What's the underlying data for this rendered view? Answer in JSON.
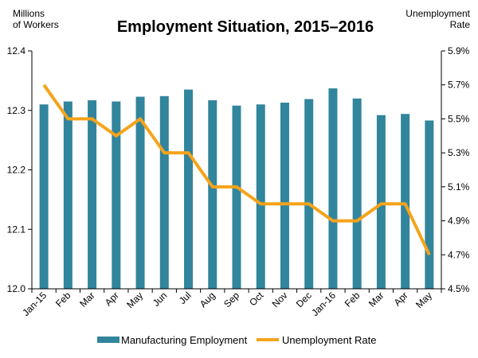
{
  "chart_data": {
    "type": "bar+line",
    "title": "Employment Situation, 2015–2016",
    "left_axis_label_line1": "Millions",
    "left_axis_label_line2": "of Workers",
    "right_axis_label_line1": "Unemployment",
    "right_axis_label_line2": "Rate",
    "categories": [
      "Jan-15",
      "Feb",
      "Mar",
      "Apr",
      "May",
      "Jun",
      "Jul",
      "Aug",
      "Sep",
      "Oct",
      "Nov",
      "Dec",
      "Jan-16",
      "Feb",
      "Mar",
      "Apr",
      "May"
    ],
    "series": [
      {
        "name": "Manufacturing Employment",
        "type": "bar",
        "axis": "left",
        "color": "#31859c",
        "values": [
          12.31,
          12.315,
          12.317,
          12.315,
          12.323,
          12.324,
          12.335,
          12.317,
          12.308,
          12.31,
          12.313,
          12.319,
          12.337,
          12.32,
          12.292,
          12.294,
          12.283
        ]
      },
      {
        "name": "Unemployment Rate",
        "type": "line",
        "axis": "right",
        "color": "#f5a31a",
        "values": [
          5.7,
          5.5,
          5.5,
          5.4,
          5.5,
          5.3,
          5.3,
          5.1,
          5.1,
          5.0,
          5.0,
          5.0,
          4.9,
          4.9,
          5.0,
          5.0,
          4.7
        ]
      }
    ],
    "left_axis": {
      "min": 12.0,
      "max": 12.4,
      "step": 0.1,
      "tick_labels": [
        "12.0",
        "12.1",
        "12.2",
        "12.3",
        "12.4"
      ]
    },
    "right_axis": {
      "min": 4.5,
      "max": 5.9,
      "step": 0.2,
      "tick_labels": [
        "4.5%",
        "4.7%",
        "4.9%",
        "5.1%",
        "5.3%",
        "5.5%",
        "5.7%",
        "5.9%"
      ]
    },
    "grid": false,
    "legend_position": "bottom"
  }
}
